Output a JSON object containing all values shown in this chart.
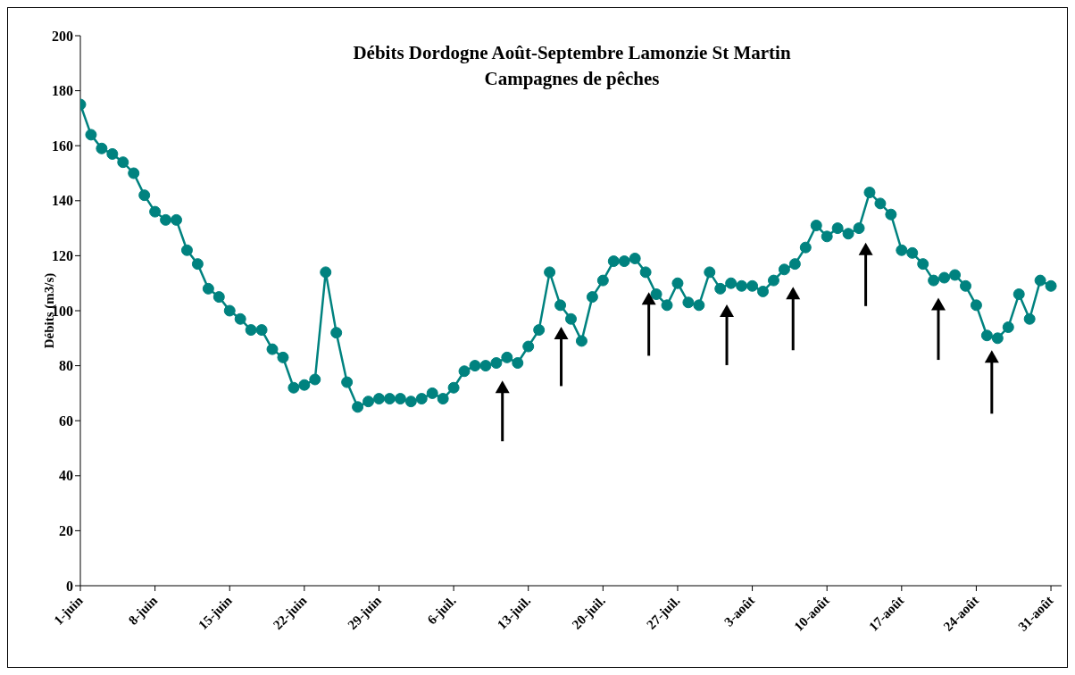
{
  "chart_data": {
    "type": "line",
    "title": "Débits Dordogne Août-Septembre Lamonzie St Martin",
    "subtitle": "Campagnes de pêches",
    "ylabel": "Débits (m3/s)",
    "marker": "circle",
    "grid": false,
    "x": [
      "--06-01",
      "--06-02",
      "--06-03",
      "--06-04",
      "--06-05",
      "--06-06",
      "--06-07",
      "--06-08",
      "--06-09",
      "--06-10",
      "--06-11",
      "--06-12",
      "--06-13",
      "--06-14",
      "--06-15",
      "--06-16",
      "--06-17",
      "--06-18",
      "--06-19",
      "--06-20",
      "--06-21",
      "--06-22",
      "--06-23",
      "--06-24",
      "--06-25",
      "--06-26",
      "--06-27",
      "--06-28",
      "--06-29",
      "--06-30",
      "--07-01",
      "--07-02",
      "--07-03",
      "--07-04",
      "--07-05",
      "--07-06",
      "--07-07",
      "--07-08",
      "--07-09",
      "--07-10",
      "--07-11",
      "--07-12",
      "--07-13",
      "--07-14",
      "--07-15",
      "--07-16",
      "--07-17",
      "--07-18",
      "--07-19",
      "--07-20",
      "--07-21",
      "--07-22",
      "--07-23",
      "--07-24",
      "--07-25",
      "--07-26",
      "--07-27",
      "--07-28",
      "--07-29",
      "--07-30",
      "--07-31",
      "--08-01",
      "--08-02",
      "--08-03",
      "--08-04",
      "--08-05",
      "--08-06",
      "--08-07",
      "--08-08",
      "--08-09",
      "--08-10",
      "--08-11",
      "--08-12",
      "--08-13",
      "--08-14",
      "--08-15",
      "--08-16",
      "--08-17",
      "--08-18",
      "--08-19",
      "--08-20",
      "--08-21",
      "--08-22",
      "--08-23",
      "--08-24",
      "--08-25",
      "--08-26",
      "--08-27",
      "--08-28",
      "--08-29",
      "--08-30",
      "--08-31"
    ],
    "series": [
      {
        "color": "#00827f",
        "values": [
          175,
          164,
          159,
          157,
          154,
          150,
          142,
          136,
          133,
          133,
          122,
          117,
          108,
          105,
          100,
          97,
          93,
          93,
          86,
          83,
          72,
          73,
          75,
          114,
          92,
          74,
          65,
          67,
          68,
          68,
          68,
          67,
          68,
          70,
          68,
          72,
          78,
          80,
          80,
          81,
          83,
          81,
          87,
          93,
          114,
          102,
          97,
          89,
          105,
          111,
          118,
          118,
          119,
          114,
          106,
          102,
          110,
          103,
          102,
          114,
          108,
          110,
          109,
          109,
          107,
          111,
          115,
          117,
          123,
          131,
          127,
          130,
          128,
          130,
          143,
          139,
          135,
          122,
          121,
          117,
          111,
          112,
          113,
          109,
          102,
          91,
          90,
          94,
          106,
          97,
          111,
          109
        ]
      }
    ],
    "xlim": [
      "--06-01",
      "--09-01"
    ],
    "xticks": [
      {
        "value": "--06-01",
        "label": "1-juin"
      },
      {
        "value": "--06-08",
        "label": "8-juin"
      },
      {
        "value": "--06-15",
        "label": "15-juin"
      },
      {
        "value": "--06-22",
        "label": "22-juin"
      },
      {
        "value": "--06-29",
        "label": "29-juin"
      },
      {
        "value": "--07-06",
        "label": "6-juil."
      },
      {
        "value": "--07-13",
        "label": "13-juil."
      },
      {
        "value": "--07-20",
        "label": "20-juil."
      },
      {
        "value": "--07-27",
        "label": "27-juil."
      },
      {
        "value": "--08-03",
        "label": "3-août"
      },
      {
        "value": "--08-10",
        "label": "10-août"
      },
      {
        "value": "--08-17",
        "label": "17-août"
      },
      {
        "value": "--08-24",
        "label": "24-août"
      },
      {
        "value": "--08-31",
        "label": "31-août"
      }
    ],
    "ylim": [
      0,
      200
    ],
    "yticks": [
      0,
      20,
      40,
      60,
      80,
      100,
      120,
      140,
      160,
      180,
      200
    ]
  }
}
